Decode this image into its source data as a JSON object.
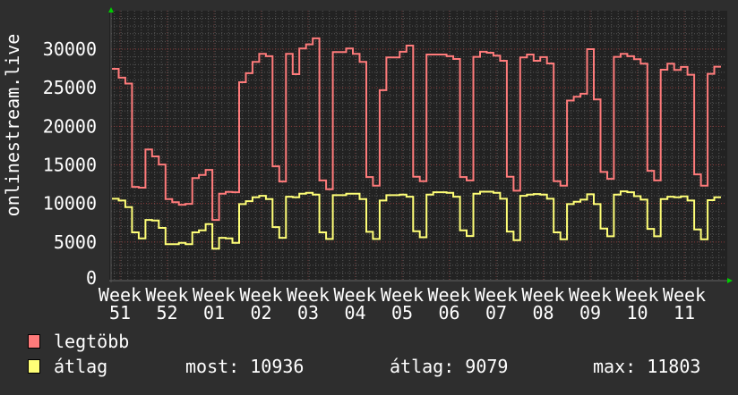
{
  "chart_data": {
    "type": "line",
    "step": true,
    "ylabel": "onlinestream.live",
    "ylim": [
      0,
      34800
    ],
    "yticks": [
      0,
      5000,
      10000,
      15000,
      20000,
      25000,
      30000
    ],
    "xtick_labels": [
      "Week 51",
      "Week 52",
      "Week 01",
      "Week 02",
      "Week 03",
      "Week 04",
      "Week 05",
      "Week 06",
      "Week 07",
      "Week 08",
      "Week 09",
      "Week 10",
      "Week 11"
    ],
    "grid": true,
    "colors": {
      "background": "#2e2e2e",
      "plot": "#222222",
      "grid_major": "#8a3a3a",
      "grid_minor": "#555555",
      "axis_arrow": "#00cc00"
    },
    "series": [
      {
        "name": "legtöbb",
        "color": "#ff7b7b",
        "values": [
          27450,
          26300,
          25540,
          12150,
          12050,
          17000,
          16100,
          15050,
          10570,
          10170,
          9830,
          9950,
          13300,
          13700,
          14350,
          7870,
          11260,
          11500,
          11450,
          25720,
          26880,
          28350,
          29390,
          29080,
          14810,
          12840,
          29390,
          26760,
          30080,
          30630,
          31400,
          12990,
          11840,
          29620,
          29620,
          30080,
          29390,
          28350,
          13420,
          12300,
          24680,
          28920,
          28920,
          29660,
          30460,
          13460,
          12880,
          29310,
          29310,
          29310,
          29080,
          28730,
          13420,
          12990,
          29000,
          29660,
          29540,
          29160,
          28500,
          13460,
          11650,
          28920,
          29310,
          28500,
          28970,
          28150,
          12880,
          12300,
          23340,
          23840,
          24220,
          30000,
          23490,
          14080,
          13190,
          29000,
          29390,
          29080,
          28700,
          28120,
          14230,
          12990,
          27340,
          28120,
          27300,
          27700,
          26690,
          13770,
          12300,
          26800,
          27730
        ]
      },
      {
        "name": "átlag",
        "color": "#ffff77",
        "values": [
          10610,
          10380,
          9520,
          6250,
          5470,
          7870,
          7790,
          6830,
          4710,
          4710,
          4900,
          4710,
          6250,
          6520,
          7330,
          4130,
          5550,
          5470,
          4900,
          9910,
          10300,
          10800,
          10990,
          10570,
          6940,
          5550,
          10880,
          10800,
          11260,
          11380,
          11150,
          6250,
          5400,
          11070,
          11070,
          11260,
          11260,
          10570,
          6330,
          5400,
          10380,
          11070,
          11070,
          11150,
          10880,
          6400,
          5620,
          11150,
          11450,
          11450,
          11380,
          10880,
          6520,
          5780,
          11260,
          11530,
          11530,
          11380,
          10610,
          6360,
          5240,
          10990,
          11150,
          11220,
          11150,
          10610,
          6250,
          5360,
          9910,
          10220,
          10490,
          11190,
          9910,
          6750,
          5740,
          11150,
          11570,
          11450,
          10950,
          10490,
          6710,
          5740,
          10570,
          10880,
          10800,
          10920,
          10380,
          6640,
          5360,
          10420,
          10800
        ]
      }
    ]
  },
  "legend": {
    "items": [
      {
        "label": "legtöbb",
        "color": "#ff7b7b"
      },
      {
        "label": "átlag",
        "color": "#ffff77"
      }
    ],
    "stats": {
      "now": "most: 10936",
      "avg": "átlag: 9079",
      "max": "max: 11803"
    }
  }
}
